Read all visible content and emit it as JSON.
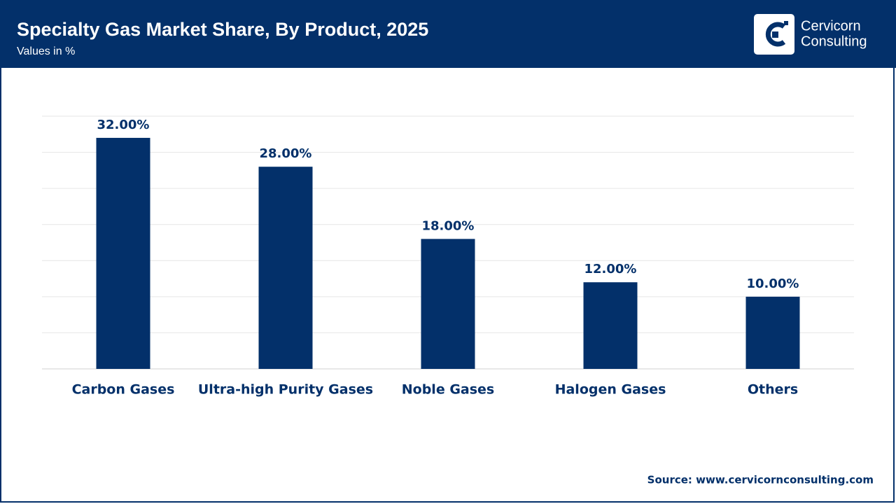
{
  "chart_data": {
    "type": "bar",
    "title": "Specialty Gas Market Share, By Product, 2025",
    "subtitle": "Values in %",
    "categories": [
      "Carbon Gases",
      "Ultra-high Purity Gases",
      "Noble Gases",
      "Halogen Gases",
      "Others"
    ],
    "values": [
      32,
      28,
      18,
      12,
      10
    ],
    "value_labels": [
      "32.00%",
      "28.00%",
      "18.00%",
      "12.00%",
      "10.00%"
    ],
    "color": "#03306a",
    "ylim": [
      0,
      35
    ],
    "yticks": [
      0,
      5,
      10,
      15,
      20,
      25,
      30,
      35
    ],
    "grid": true,
    "source": "Source: www.cervicornconsulting.com"
  },
  "logo": {
    "line1": "Cervicorn",
    "line2": "Consulting"
  }
}
